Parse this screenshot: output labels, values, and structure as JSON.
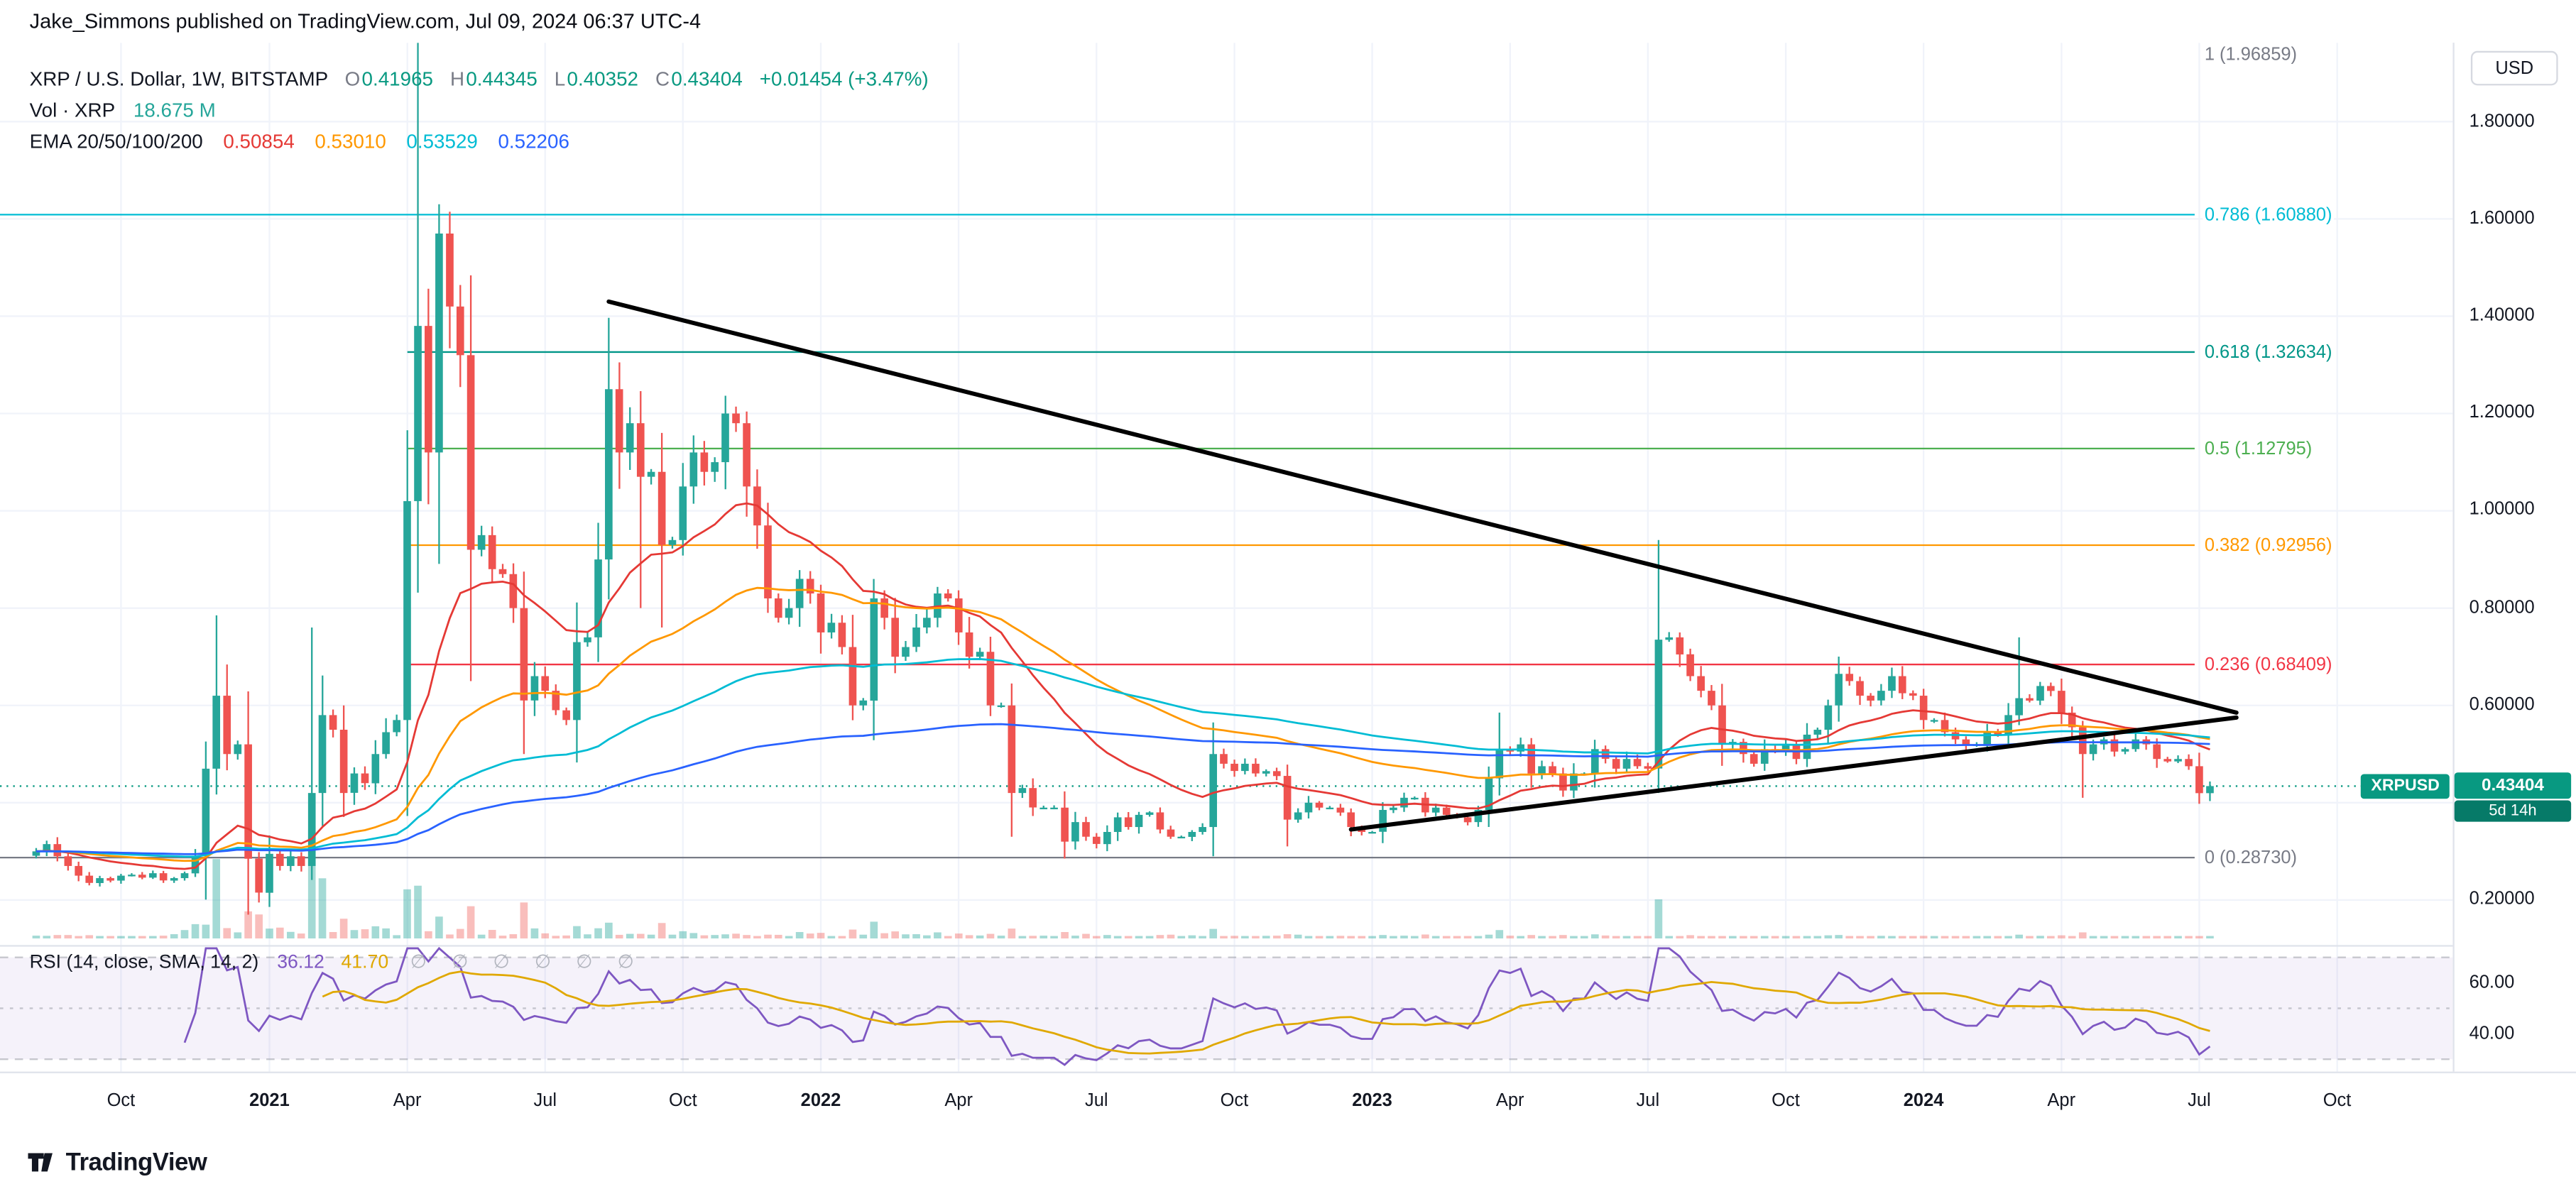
{
  "attribution": "Jake_Simmons published on TradingView.com, Jul 09, 2024 06:37 UTC-4",
  "header": {
    "symbol_line": {
      "title": "XRP / U.S. Dollar, 1W, BITSTAMP",
      "o_label": "O",
      "h_label": "H",
      "l_label": "L",
      "c_label": "C",
      "change": "+0.01454 (+3.47%)"
    },
    "volume_line": {
      "label": "Vol · XRP",
      "value_color": "#26a69a"
    },
    "ema_line": {
      "label": "EMA 20/50/100/200"
    }
  },
  "currency_button": {
    "label": "USD"
  },
  "price_label": {
    "ticker": "XRPUSD",
    "price": "0.43404",
    "countdown": "5d 14h",
    "color": "#089981"
  },
  "rsi_pane": {
    "title": "RSI (14, close, SMA, 14, 2)",
    "empty_values": [
      "∅",
      "∅",
      "∅",
      "∅",
      "∅",
      "∅"
    ]
  },
  "logo": {
    "text": "TradingView"
  },
  "chart_data": {
    "type": "candlestick",
    "symbol": "XRP / U.S. Dollar",
    "timeframe": "1W",
    "exchange": "BITSTAMP",
    "ylim": [
      0.13,
      1.99
    ],
    "price_gridline_step": 0.2,
    "volume_current": "18.675 M",
    "last_candle": {
      "open": 0.41965,
      "high": 0.44345,
      "low": 0.40352,
      "close": 0.43404
    },
    "weekly_closes": [
      0.3,
      0.315,
      0.29,
      0.27,
      0.25,
      0.235,
      0.245,
      0.24,
      0.25,
      0.252,
      0.246,
      0.255,
      0.24,
      0.245,
      0.255,
      0.29,
      0.47,
      0.62,
      0.5,
      0.52,
      0.285,
      0.215,
      0.295,
      0.27,
      0.29,
      0.27,
      0.42,
      0.58,
      0.55,
      0.42,
      0.46,
      0.44,
      0.5,
      0.545,
      0.57,
      1.02,
      1.38,
      1.12,
      1.57,
      1.42,
      1.32,
      0.92,
      0.95,
      0.88,
      0.87,
      0.8,
      0.61,
      0.66,
      0.63,
      0.59,
      0.57,
      0.73,
      0.74,
      0.9,
      1.25,
      1.12,
      1.18,
      1.07,
      1.08,
      0.93,
      0.94,
      1.05,
      1.12,
      1.08,
      1.1,
      1.2,
      1.18,
      1.05,
      0.97,
      0.82,
      0.78,
      0.8,
      0.86,
      0.83,
      0.75,
      0.77,
      0.72,
      0.6,
      0.61,
      0.82,
      0.78,
      0.7,
      0.72,
      0.76,
      0.78,
      0.83,
      0.82,
      0.75,
      0.7,
      0.71,
      0.6,
      0.6,
      0.42,
      0.43,
      0.39,
      0.39,
      0.39,
      0.32,
      0.36,
      0.33,
      0.315,
      0.34,
      0.37,
      0.35,
      0.375,
      0.38,
      0.345,
      0.33,
      0.33,
      0.34,
      0.35,
      0.5,
      0.48,
      0.465,
      0.48,
      0.46,
      0.465,
      0.455,
      0.365,
      0.38,
      0.4,
      0.39,
      0.39,
      0.38,
      0.35,
      0.34,
      0.34,
      0.385,
      0.39,
      0.41,
      0.41,
      0.38,
      0.39,
      0.375,
      0.37,
      0.36,
      0.385,
      0.45,
      0.51,
      0.505,
      0.52,
      0.46,
      0.475,
      0.46,
      0.425,
      0.46,
      0.46,
      0.51,
      0.49,
      0.47,
      0.49,
      0.475,
      0.47,
      0.735,
      0.74,
      0.705,
      0.66,
      0.63,
      0.6,
      0.52,
      0.525,
      0.5,
      0.48,
      0.51,
      0.505,
      0.52,
      0.49,
      0.54,
      0.55,
      0.6,
      0.665,
      0.65,
      0.62,
      0.61,
      0.63,
      0.66,
      0.625,
      0.62,
      0.57,
      0.57,
      0.545,
      0.53,
      0.52,
      0.52,
      0.545,
      0.54,
      0.58,
      0.615,
      0.61,
      0.64,
      0.63,
      0.585,
      0.555,
      0.5,
      0.52,
      0.53,
      0.505,
      0.51,
      0.53,
      0.52,
      0.49,
      0.485,
      0.49,
      0.475,
      0.4196,
      0.43404
    ],
    "extremes": {
      "17": {
        "high": 0.785
      },
      "20": {
        "low": 0.17
      },
      "21": {
        "low": 0.195
      },
      "26": {
        "high": 0.76
      },
      "36": {
        "high": 1.97
      },
      "38": {
        "high": 1.63
      },
      "41": {
        "low": 0.65
      },
      "46": {
        "low": 0.5
      },
      "57": {
        "low": 0.8
      },
      "59": {
        "low": 0.76
      },
      "92": {
        "low": 0.33
      },
      "97": {
        "low": 0.285
      },
      "111": {
        "high": 0.565
      },
      "118": {
        "low": 0.31
      },
      "138": {
        "high": 0.585
      },
      "153": {
        "high": 0.94
      },
      "187": {
        "high": 0.74
      },
      "193": {
        "low": 0.41
      }
    },
    "ema": {
      "periods": [
        20,
        50,
        100,
        200
      ],
      "colors": [
        "#e53935",
        "#ff9800",
        "#00bcd4",
        "#2962ff"
      ],
      "current": [
        "0.50854",
        "0.53010",
        "0.53529",
        "0.52206"
      ]
    },
    "rsi": {
      "period": 14,
      "source": "close",
      "smoothing": "SMA",
      "smoothing_length": 14,
      "current": "36.12",
      "sma_current": "41.70",
      "color": "#7e57c2",
      "sma_color": "#e0a800",
      "band": [
        30,
        70
      ]
    },
    "fib_levels": [
      {
        "label": "1 (1.96859)",
        "price": 1.96859,
        "color": "#787b86",
        "full": true
      },
      {
        "label": "0.786 (1.60880)",
        "price": 1.6088,
        "color": "#00bcd4",
        "full": true
      },
      {
        "label": "0.618 (1.32634)",
        "price": 1.32634,
        "color": "#009688",
        "full": false
      },
      {
        "label": "0.5 (1.12795)",
        "price": 1.12795,
        "color": "#4caf50",
        "full": false
      },
      {
        "label": "0.382 (0.92956)",
        "price": 0.92956,
        "color": "#ff9800",
        "full": false
      },
      {
        "label": "0.236 (0.68409)",
        "price": 0.68409,
        "color": "#f23645",
        "full": false
      },
      {
        "label": "0 (0.28730)",
        "price": 0.2873,
        "color": "#787b86",
        "full": true
      }
    ],
    "trendlines": {
      "color": "#000000",
      "lines": [
        {
          "from_week": 54,
          "from_price": 1.43,
          "to_week": 207.5,
          "to_price": 0.585
        },
        {
          "from_week": 124,
          "from_price": 0.345,
          "to_week": 207.5,
          "to_price": 0.575
        }
      ]
    },
    "time_ticks": [
      {
        "label": "Oct",
        "week": 8
      },
      {
        "label": "2021",
        "week": 22,
        "year": true
      },
      {
        "label": "Apr",
        "week": 35
      },
      {
        "label": "Jul",
        "week": 48
      },
      {
        "label": "Oct",
        "week": 61
      },
      {
        "label": "2022",
        "week": 74,
        "year": true
      },
      {
        "label": "Apr",
        "week": 87
      },
      {
        "label": "Jul",
        "week": 100
      },
      {
        "label": "Oct",
        "week": 113
      },
      {
        "label": "2023",
        "week": 126,
        "year": true
      },
      {
        "label": "Apr",
        "week": 139
      },
      {
        "label": "Jul",
        "week": 152
      },
      {
        "label": "Oct",
        "week": 165
      },
      {
        "label": "2024",
        "week": 178,
        "year": true
      },
      {
        "label": "Apr",
        "week": 191
      },
      {
        "label": "Jul",
        "week": 204
      },
      {
        "label": "Oct",
        "week": 217
      }
    ],
    "price_ticks": [
      {
        "label": "1.80000",
        "value": 1.8
      },
      {
        "label": "1.60000",
        "value": 1.6
      },
      {
        "label": "1.40000",
        "value": 1.4
      },
      {
        "label": "1.20000",
        "value": 1.2
      },
      {
        "label": "1.00000",
        "value": 1.0
      },
      {
        "label": "0.80000",
        "value": 0.8
      },
      {
        "label": "0.60000",
        "value": 0.6
      },
      {
        "label": "0.20000",
        "value": 0.2
      }
    ],
    "rsi_ticks": [
      {
        "label": "60.00",
        "value": 60
      },
      {
        "label": "40.00",
        "value": 40
      }
    ]
  }
}
